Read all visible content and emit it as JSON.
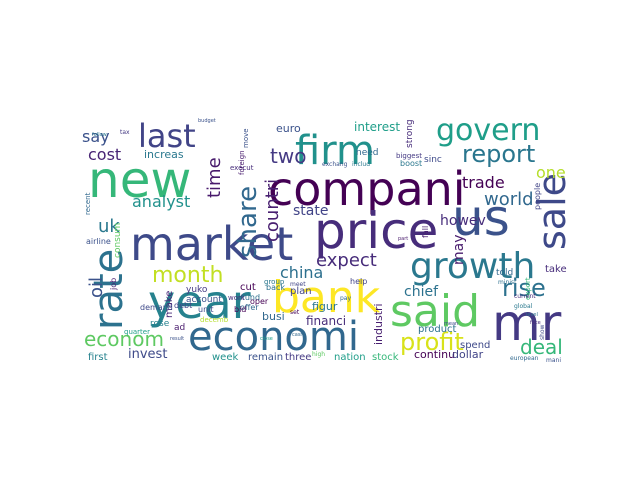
{
  "words": [
    {
      "text": "new",
      "color": "#35b779"
    },
    {
      "text": "compani",
      "color": "#440154"
    },
    {
      "text": "market",
      "color": "#3e4a89"
    },
    {
      "text": "price",
      "color": "#472d7b"
    },
    {
      "text": "year",
      "color": "#26828e"
    },
    {
      "text": "bank",
      "color": "#fde725"
    },
    {
      "text": "said",
      "color": "#5ec962"
    },
    {
      "text": "economi",
      "color": "#31688e"
    },
    {
      "text": "firm",
      "color": "#21918c"
    },
    {
      "text": "us",
      "color": "#3b528b"
    },
    {
      "text": "mr",
      "color": "#443983"
    },
    {
      "text": "growth",
      "color": "#2a788e"
    },
    {
      "text": "last",
      "color": "#414487"
    },
    {
      "text": "govern",
      "color": "#1f9e89"
    },
    {
      "text": "rate",
      "color": "#2c728e"
    },
    {
      "text": "sale",
      "color": "#3e4989"
    },
    {
      "text": "month",
      "color": "#c2df23"
    },
    {
      "text": "report",
      "color": "#2a768e"
    },
    {
      "text": "share",
      "color": "#31688e"
    },
    {
      "text": "profit",
      "color": "#d8e219"
    },
    {
      "text": "rise",
      "color": "#2c718e"
    },
    {
      "text": "countri",
      "color": "#481f70"
    },
    {
      "text": "econom",
      "color": "#5ec962"
    },
    {
      "text": "deal",
      "color": "#35b779"
    },
    {
      "text": "expect",
      "color": "#472c7a"
    },
    {
      "text": "world",
      "color": "#31688e"
    },
    {
      "text": "two",
      "color": "#443983"
    },
    {
      "text": "uk",
      "color": "#2a788e"
    },
    {
      "text": "oil",
      "color": "#3b528b"
    },
    {
      "text": "china",
      "color": "#2d708e"
    },
    {
      "text": "time",
      "color": "#481a6c"
    },
    {
      "text": "analyst",
      "color": "#21918c"
    },
    {
      "text": "trade",
      "color": "#440154"
    },
    {
      "text": "cost",
      "color": "#482475"
    },
    {
      "text": "say",
      "color": "#3b528b"
    },
    {
      "text": "one",
      "color": "#b5de2b"
    },
    {
      "text": "state",
      "color": "#414487"
    },
    {
      "text": "howev",
      "color": "#472d7b"
    },
    {
      "text": "chief",
      "color": "#2c728e"
    },
    {
      "text": "may",
      "color": "#481b6d"
    },
    {
      "text": "invest",
      "color": "#3e4a89"
    },
    {
      "text": "interest",
      "color": "#1f9e89"
    },
    {
      "text": "make",
      "color": "#482878"
    },
    {
      "text": "increas",
      "color": "#2a788e"
    },
    {
      "text": "euro",
      "color": "#3b528b"
    },
    {
      "text": "busi",
      "color": "#31688e"
    },
    {
      "text": "financi",
      "color": "#472c7a"
    },
    {
      "text": "industri",
      "color": "#481f70"
    },
    {
      "text": "continu",
      "color": "#440154"
    },
    {
      "text": "dollar",
      "color": "#414487"
    },
    {
      "text": "figur",
      "color": "#2a768e"
    },
    {
      "text": "first",
      "color": "#26828e"
    },
    {
      "text": "week",
      "color": "#21918c"
    },
    {
      "text": "remain",
      "color": "#3b528b"
    },
    {
      "text": "three",
      "color": "#443983"
    },
    {
      "text": "nation",
      "color": "#1f9e89"
    },
    {
      "text": "stock",
      "color": "#35b779"
    },
    {
      "text": "product",
      "color": "#2c728e"
    },
    {
      "text": "spend",
      "color": "#3e4989"
    },
    {
      "text": "take",
      "color": "#472d7b"
    },
    {
      "text": "told",
      "color": "#31688e"
    },
    {
      "text": "plan",
      "color": "#414487"
    },
    {
      "text": "cut",
      "color": "#440154"
    },
    {
      "text": "account",
      "color": "#3b528b"
    },
    {
      "text": "rose",
      "color": "#26828e"
    },
    {
      "text": "ad",
      "color": "#481a6c"
    },
    {
      "text": "fund",
      "color": "#2d708e"
    },
    {
      "text": "need",
      "color": "#31688e"
    },
    {
      "text": "sinc",
      "color": "#3e4a89"
    },
    {
      "text": "strong",
      "color": "#472c7a"
    },
    {
      "text": "boost",
      "color": "#2a788e"
    },
    {
      "text": "job",
      "color": "#481f70"
    },
    {
      "text": "consum",
      "color": "#5ec962"
    },
    {
      "text": "airline",
      "color": "#3b528b"
    },
    {
      "text": "yuko",
      "color": "#443983"
    },
    {
      "text": "debt",
      "color": "#414487"
    },
    {
      "text": "demand",
      "color": "#3e4989"
    },
    {
      "text": "offer",
      "color": "#31688e"
    },
    {
      "text": "oper",
      "color": "#440154"
    },
    {
      "text": "back",
      "color": "#2c718e"
    },
    {
      "text": "group",
      "color": "#2a788e"
    },
    {
      "text": "execut",
      "color": "#472d7b"
    },
    {
      "text": "move",
      "color": "#3b528b"
    },
    {
      "text": "foreign",
      "color": "#481b6d"
    },
    {
      "text": "help",
      "color": "#414487"
    },
    {
      "text": "bid",
      "color": "#440154"
    },
    {
      "text": "quarter",
      "color": "#1f9e89"
    },
    {
      "text": "recent",
      "color": "#31688e"
    },
    {
      "text": "unit",
      "color": "#3e4a89"
    },
    {
      "text": "work",
      "color": "#472c7a"
    },
    {
      "text": "decemb",
      "color": "#b5de2b"
    },
    {
      "text": "biggest",
      "color": "#443983"
    },
    {
      "text": "exchang",
      "color": "#3b528b"
    },
    {
      "text": "includ",
      "color": "#2a788e"
    },
    {
      "text": "fall",
      "color": "#481f70"
    },
    {
      "text": "people",
      "color": "#414487"
    },
    {
      "text": "export",
      "color": "#35b779"
    },
    {
      "text": "minist",
      "color": "#2d708e"
    },
    {
      "text": "show",
      "color": "#3e4989"
    },
    {
      "text": "mani",
      "color": "#3b528b"
    },
    {
      "text": "european",
      "color": "#31688e"
    },
    {
      "text": "current",
      "color": "#472d7b"
    },
    {
      "text": "global",
      "color": "#2a788e"
    },
    {
      "text": "high",
      "color": "#5ec962"
    },
    {
      "text": "pay",
      "color": "#31688e"
    },
    {
      "text": "set",
      "color": "#440154"
    },
    {
      "text": "meet",
      "color": "#414487"
    },
    {
      "text": "budget",
      "color": "#3b528b"
    },
    {
      "text": "tax",
      "color": "#443983"
    },
    {
      "text": "follow",
      "color": "#2a788e"
    },
    {
      "text": "face",
      "color": "#472c7a"
    },
    {
      "text": "cash",
      "color": "#31688e"
    },
    {
      "text": "mean",
      "color": "#3e4a89"
    },
    {
      "text": "part",
      "color": "#481a6c"
    },
    {
      "text": "level",
      "color": "#2d708e"
    },
    {
      "text": "result",
      "color": "#3b528b"
    },
    {
      "text": "close",
      "color": "#1f9e89"
    }
  ]
}
